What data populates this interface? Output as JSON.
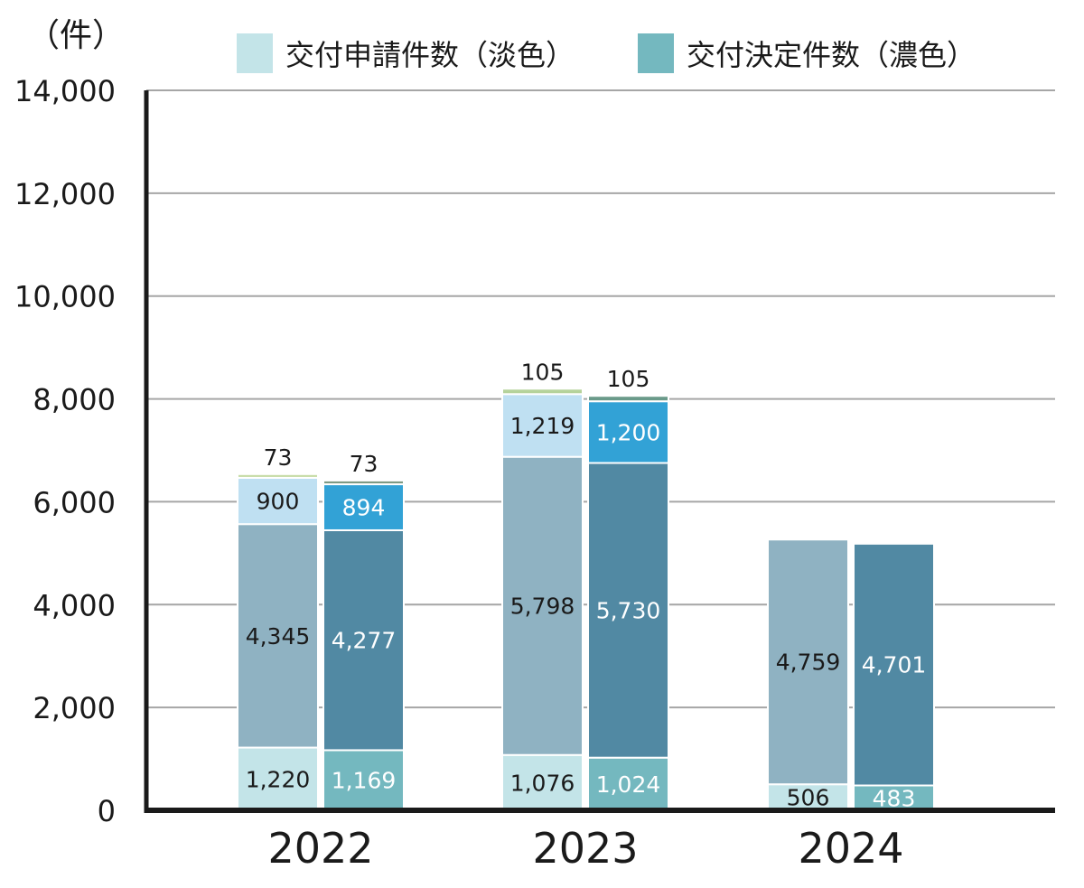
{
  "chart_data": {
    "type": "bar",
    "unit_label": "（件）",
    "categories": [
      "2022",
      "2023",
      "2024"
    ],
    "ylim": [
      0,
      14000
    ],
    "yticks": [
      "0",
      "2,000",
      "4,000",
      "6,000",
      "8,000",
      "10,000",
      "12,000",
      "14,000"
    ],
    "legend": [
      {
        "name": "交付申請件数（淡色）",
        "color": "#c3e4e8"
      },
      {
        "name": "交付決定件数（濃色）",
        "color": "#74b8bf"
      }
    ],
    "bars": [
      {
        "group": "2022",
        "kind": "application",
        "segments": [
          {
            "value": 1220,
            "label": "1,220",
            "color": "#c3e4e8",
            "label_color": "#1a1a1a"
          },
          {
            "value": 4345,
            "label": "4,345",
            "color": "#8fb2c2",
            "label_color": "#1a1a1a"
          },
          {
            "value": 900,
            "label": "900",
            "color": "#bfe0f2",
            "label_color": "#1a1a1a"
          },
          {
            "value": 73,
            "label": "73",
            "color": "#c8dca8",
            "label_color": "#1a1a1a"
          }
        ]
      },
      {
        "group": "2022",
        "kind": "decision",
        "segments": [
          {
            "value": 1169,
            "label": "1,169",
            "color": "#74b8bf",
            "label_color": "#ffffff"
          },
          {
            "value": 4277,
            "label": "4,277",
            "color": "#5189a3",
            "label_color": "#ffffff"
          },
          {
            "value": 894,
            "label": "894",
            "color": "#32a2d6",
            "label_color": "#ffffff"
          },
          {
            "value": 73,
            "label": "73",
            "color": "#7e9a84",
            "label_color": "#1a1a1a"
          }
        ]
      },
      {
        "group": "2023",
        "kind": "application",
        "segments": [
          {
            "value": 1076,
            "label": "1,076",
            "color": "#c3e4e8",
            "label_color": "#1a1a1a"
          },
          {
            "value": 5798,
            "label": "5,798",
            "color": "#8fb2c2",
            "label_color": "#1a1a1a"
          },
          {
            "value": 1219,
            "label": "1,219",
            "color": "#bfe0f2",
            "label_color": "#1a1a1a"
          },
          {
            "value": 105,
            "label": "105",
            "color": "#b5d29a",
            "label_color": "#1a1a1a"
          }
        ]
      },
      {
        "group": "2023",
        "kind": "decision",
        "segments": [
          {
            "value": 1024,
            "label": "1,024",
            "color": "#74b8bf",
            "label_color": "#ffffff"
          },
          {
            "value": 5730,
            "label": "5,730",
            "color": "#5189a3",
            "label_color": "#ffffff"
          },
          {
            "value": 1200,
            "label": "1,200",
            "color": "#32a2d6",
            "label_color": "#ffffff"
          },
          {
            "value": 105,
            "label": "105",
            "color": "#6a9a8a",
            "label_color": "#1a1a1a"
          }
        ]
      },
      {
        "group": "2024",
        "kind": "application",
        "segments": [
          {
            "value": 506,
            "label": "506",
            "color": "#c3e4e8",
            "label_color": "#1a1a1a"
          },
          {
            "value": 4759,
            "label": "4,759",
            "color": "#8fb2c2",
            "label_color": "#1a1a1a"
          }
        ]
      },
      {
        "group": "2024",
        "kind": "decision",
        "segments": [
          {
            "value": 483,
            "label": "483",
            "color": "#74b8bf",
            "label_color": "#ffffff"
          },
          {
            "value": 4701,
            "label": "4,701",
            "color": "#5189a3",
            "label_color": "#ffffff"
          }
        ]
      }
    ]
  }
}
